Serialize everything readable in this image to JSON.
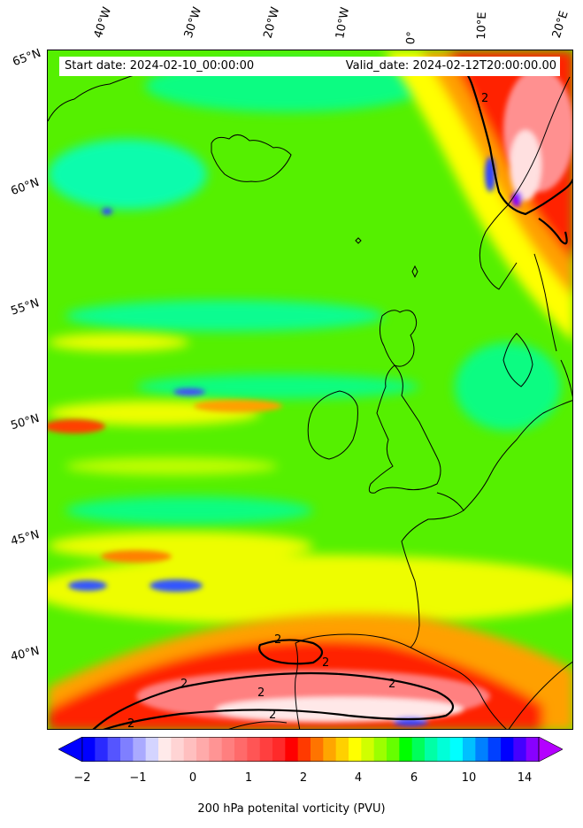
{
  "header": {
    "start_date": "Start date: 2024-02-10_00:00:00",
    "valid_date": "Valid_date: 2024-02-12T20:00:00.00"
  },
  "longitude_labels": [
    "40°W",
    "30°W",
    "20°W",
    "10°W",
    "0°",
    "10°E",
    "20°E"
  ],
  "latitude_labels": [
    "65°N",
    "60°N",
    "55°N",
    "50°N",
    "45°N",
    "40°N"
  ],
  "contour_label": "2",
  "colorbar": {
    "title": "200 hPa potenital vorticity (PVU)",
    "ticks": [
      "−2",
      "−1",
      "0",
      "1",
      "2",
      "4",
      "6",
      "10",
      "14"
    ],
    "colors": [
      "#0000ff",
      "#2a2aff",
      "#5555ff",
      "#7f7fff",
      "#aaaaff",
      "#d4d4ff",
      "#ffeaea",
      "#ffd4d4",
      "#ffbfbf",
      "#ffaaaa",
      "#ff9494",
      "#ff7f7f",
      "#ff6a6a",
      "#ff5555",
      "#ff3f3f",
      "#ff2a2a",
      "#ff0000",
      "#ff3a00",
      "#ff7400",
      "#ffa600",
      "#ffd000",
      "#ffff00",
      "#d0ff00",
      "#9cff00",
      "#66ff00",
      "#00ff00",
      "#00ff5a",
      "#00ffa6",
      "#00ffd8",
      "#00ffff",
      "#00c0ff",
      "#0080ff",
      "#0040ff",
      "#0000ff",
      "#4400ff",
      "#8800ff"
    ],
    "extend_low_color": "#0000ff",
    "extend_high_color": "#b400ff"
  },
  "field_colors": {
    "background": "#55f000",
    "green_light": "#66ff33",
    "cyan": "#00ffdd",
    "yellow": "#ffff00",
    "orange": "#ffa500",
    "red": "#ff1a00",
    "blue": "#3344ff",
    "coast": "#000000"
  }
}
